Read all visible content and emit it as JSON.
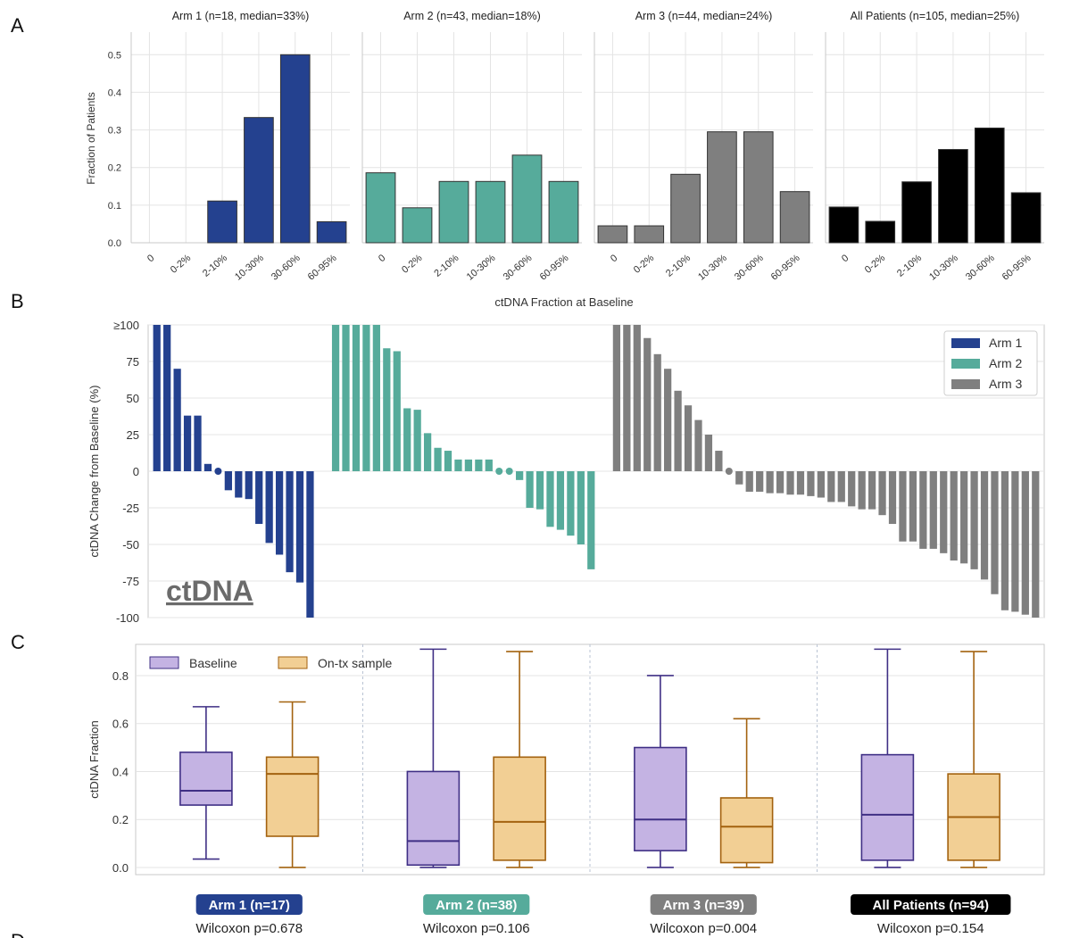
{
  "panel_letters": {
    "a": "A",
    "b": "B",
    "c": "C",
    "d": "D"
  },
  "colors": {
    "arm1": "#24418f",
    "arm2": "#56ab9b",
    "arm3": "#7f7f7f",
    "all": "#000000",
    "baseline_fill": "#c4b3e3",
    "baseline_line": "#3f2f85",
    "ontx_fill": "#f2cf94",
    "ontx_line": "#a3620f"
  },
  "chart_data": [
    {
      "type": "bar",
      "panel": "A",
      "ylabel": "Fraction of Patients",
      "xlabel": "ctDNA Fraction at Baseline",
      "ylim": [
        0,
        0.56
      ],
      "yticks": [
        "0.0",
        "0.1",
        "0.2",
        "0.3",
        "0.4",
        "0.5"
      ],
      "categories": [
        "0",
        "0-2%",
        "2-10%",
        "10-30%",
        "30-60%",
        "60-95%"
      ],
      "grid": true,
      "series": [
        {
          "name": "Arm 1 (n=18, median=33%)",
          "values": [
            0,
            0,
            0.111,
            0.333,
            0.5,
            0.056
          ]
        },
        {
          "name": "Arm 2 (n=43, median=18%)",
          "values": [
            0.186,
            0.093,
            0.163,
            0.163,
            0.233,
            0.163
          ]
        },
        {
          "name": "Arm 3 (n=44, median=24%)",
          "values": [
            0.045,
            0.045,
            0.182,
            0.295,
            0.295,
            0.136
          ]
        },
        {
          "name": "All Patients (n=105, median=25%)",
          "values": [
            0.095,
            0.057,
            0.162,
            0.248,
            0.305,
            0.133
          ]
        }
      ]
    },
    {
      "type": "bar",
      "panel": "B",
      "ylabel": "ctDNA Change from Baseline (%)",
      "ylim": [
        -100,
        100
      ],
      "yticks": [
        "≥100",
        "75",
        "50",
        "25",
        "0",
        "-25",
        "-50",
        "-75",
        "-100"
      ],
      "watermark": "ctDNA",
      "legend": "top-right",
      "series": [
        {
          "name": "Arm 1",
          "values": [
            100,
            100,
            70,
            38,
            38,
            5,
            0,
            -13,
            -18,
            -19,
            -36,
            -49,
            -57,
            -69,
            -76,
            -100
          ]
        },
        {
          "name": "Arm 2",
          "values": [
            100,
            100,
            100,
            100,
            100,
            84,
            82,
            43,
            42,
            26,
            16,
            14,
            8,
            8,
            8,
            8,
            0,
            0,
            -6,
            -25,
            -26,
            -38,
            -40,
            -44,
            -50,
            -67
          ]
        },
        {
          "name": "Arm 3",
          "values": [
            100,
            100,
            100,
            91,
            80,
            70,
            55,
            45,
            35,
            25,
            14,
            0,
            -9,
            -14,
            -14,
            -15,
            -15,
            -16,
            -16,
            -17,
            -18,
            -21,
            -21,
            -24,
            -26,
            -26,
            -30,
            -36,
            -48,
            -48,
            -53,
            -53,
            -56,
            -61,
            -63,
            -67,
            -74,
            -84,
            -95,
            -96,
            -98,
            -100
          ]
        }
      ]
    },
    {
      "type": "box",
      "panel": "C",
      "ylabel": "ctDNA Fraction",
      "ylim": [
        -0.03,
        0.93
      ],
      "yticks": [
        "0.0",
        "0.2",
        "0.4",
        "0.6",
        "0.8"
      ],
      "legend": "top-left",
      "series_names": [
        "Baseline",
        "On-tx sample"
      ],
      "groups": [
        {
          "label": "Arm 1 (n=17)",
          "test": "Wilcoxon p=0.678",
          "baseline": {
            "min": 0.035,
            "q1": 0.26,
            "median": 0.32,
            "q3": 0.48,
            "max": 0.67
          },
          "ontx": {
            "min": 0.0,
            "q1": 0.13,
            "median": 0.39,
            "q3": 0.46,
            "max": 0.69
          }
        },
        {
          "label": "Arm 2 (n=38)",
          "test": "Wilcoxon p=0.106",
          "baseline": {
            "min": 0.0,
            "q1": 0.01,
            "median": 0.11,
            "q3": 0.4,
            "max": 0.91
          },
          "ontx": {
            "min": 0.0,
            "q1": 0.03,
            "median": 0.19,
            "q3": 0.46,
            "max": 0.9
          }
        },
        {
          "label": "Arm 3 (n=39)",
          "test": "Wilcoxon p=0.004",
          "baseline": {
            "min": 0.0,
            "q1": 0.07,
            "median": 0.2,
            "q3": 0.5,
            "max": 0.8
          },
          "ontx": {
            "min": 0.0,
            "q1": 0.02,
            "median": 0.17,
            "q3": 0.29,
            "max": 0.62
          }
        },
        {
          "label": "All Patients (n=94)",
          "test": "Wilcoxon p=0.154",
          "baseline": {
            "min": 0.0,
            "q1": 0.03,
            "median": 0.22,
            "q3": 0.47,
            "max": 0.91
          },
          "ontx": {
            "min": 0.0,
            "q1": 0.03,
            "median": 0.21,
            "q3": 0.39,
            "max": 0.9
          }
        }
      ]
    }
  ]
}
